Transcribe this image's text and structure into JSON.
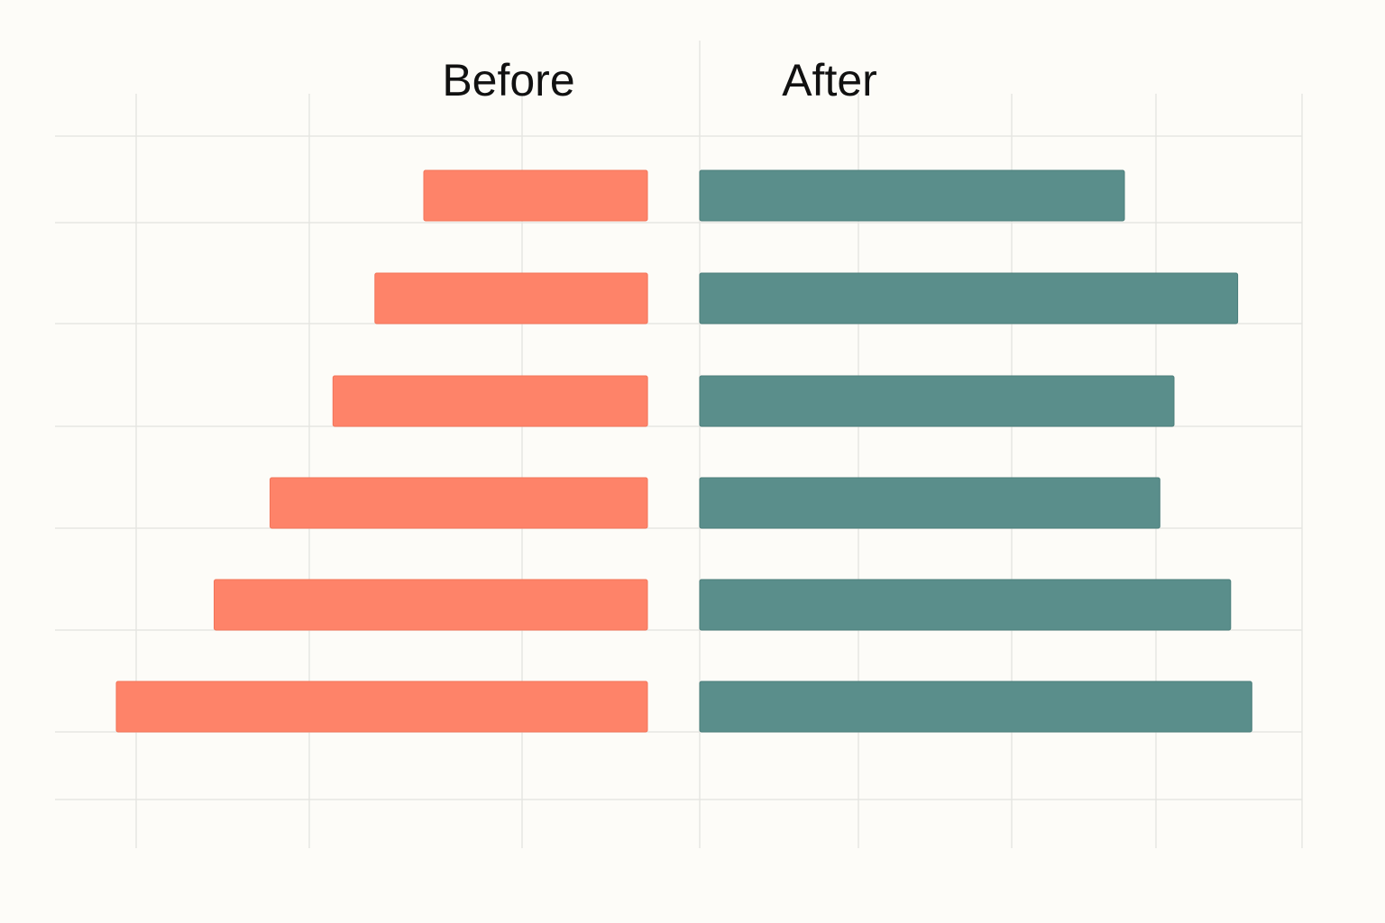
{
  "chart_data": {
    "type": "bar",
    "orientation": "horizontal",
    "layout": "back-to-back",
    "categories": [
      "",
      "",
      "",
      "",
      "",
      ""
    ],
    "series": [
      {
        "name": "Before",
        "values": [
          3.2,
          3.9,
          4.5,
          5.4,
          6.2,
          7.6
        ],
        "color": "#fe8369",
        "direction": "left"
      },
      {
        "name": "After",
        "values": [
          6.0,
          7.6,
          6.7,
          6.5,
          7.5,
          7.8
        ],
        "color": "#5a8e8b",
        "direction": "right"
      }
    ],
    "xlim": [
      0,
      8.5
    ],
    "grid": true,
    "legend": "none",
    "xlabel": "",
    "ylabel": ""
  }
}
